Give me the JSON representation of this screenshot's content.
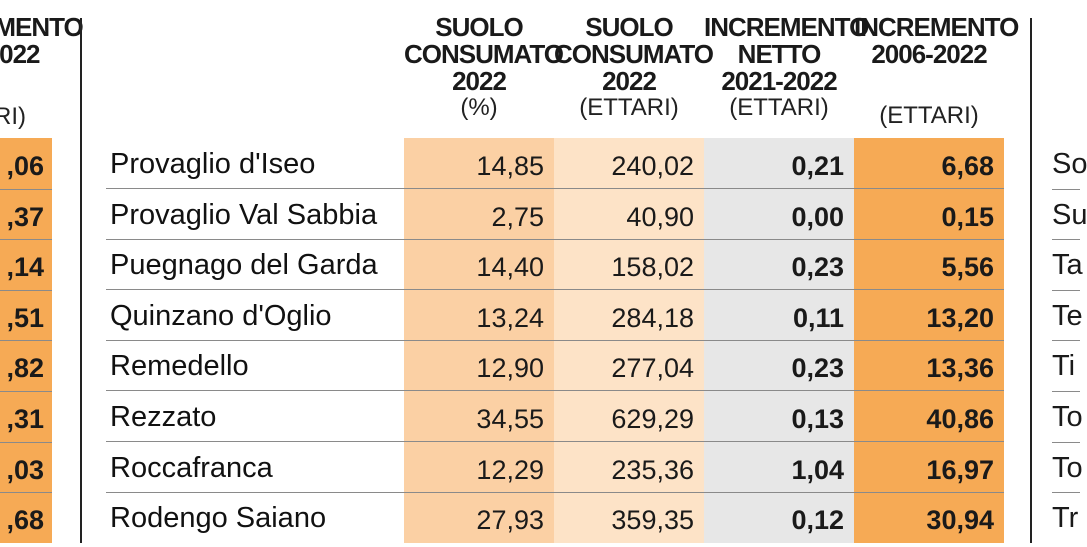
{
  "headers": {
    "left_partial": {
      "line1": "EMENTO",
      "line2": "-2022",
      "unit": "ARI)"
    },
    "col1": {
      "line1": "SUOLO",
      "line2": "CONSUMATO",
      "line3": "2022",
      "unit": "(%)"
    },
    "col2": {
      "line1": "SUOLO",
      "line2": "CONSUMATO",
      "line3": "2022",
      "unit": "(ETTARI)"
    },
    "col3": {
      "line1": "INCREMENTO",
      "line2": "NETTO",
      "line3": "2021-2022",
      "unit": "(ETTARI)"
    },
    "col4": {
      "line1": "INCREMENTO",
      "line2": "2006-2022",
      "unit": "(ETTARI)"
    }
  },
  "rows": [
    {
      "name": "Provaglio d'Iseo",
      "pct": "14,85",
      "ha": "240,02",
      "net": "0,21",
      "inc": "6,68"
    },
    {
      "name": "Provaglio Val Sabbia",
      "pct": "2,75",
      "ha": "40,90",
      "net": "0,00",
      "inc": "0,15"
    },
    {
      "name": "Puegnago del Garda",
      "pct": "14,40",
      "ha": "158,02",
      "net": "0,23",
      "inc": "5,56"
    },
    {
      "name": "Quinzano d'Oglio",
      "pct": "13,24",
      "ha": "284,18",
      "net": "0,11",
      "inc": "13,20"
    },
    {
      "name": "Remedello",
      "pct": "12,90",
      "ha": "277,04",
      "net": "0,23",
      "inc": "13,36"
    },
    {
      "name": "Rezzato",
      "pct": "34,55",
      "ha": "629,29",
      "net": "0,13",
      "inc": "40,86"
    },
    {
      "name": "Roccafranca",
      "pct": "12,29",
      "ha": "235,36",
      "net": "1,04",
      "inc": "16,97"
    },
    {
      "name": "Rodengo Saiano",
      "pct": "27,93",
      "ha": "359,35",
      "net": "0,12",
      "inc": "30,94"
    }
  ],
  "left_partial_values": [
    ",06",
    ",37",
    ",14",
    ",51",
    ",82",
    ",31",
    ",03",
    ",68"
  ],
  "right_partial_names": [
    "So",
    "Su",
    "Ta",
    "Te",
    "Ti",
    "To",
    "To",
    "Tr"
  ],
  "colors": {
    "col_pct": "#fbd0a4",
    "col_ha": "#fde3c7",
    "col_net": "#e7e7e7",
    "col_inc": "#f6aa55",
    "left_inc": "#f6aa55"
  }
}
